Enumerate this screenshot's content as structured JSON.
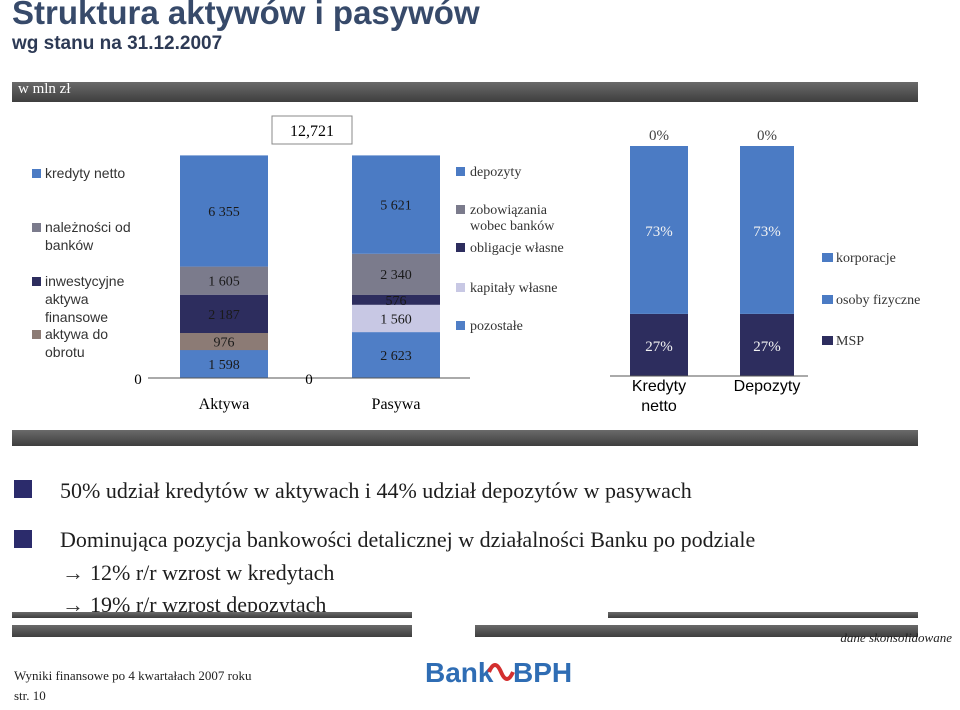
{
  "header": {
    "title": "Struktura aktywów i pasywów",
    "subtitle": "wg stanu na 31.12.2007",
    "unit": "w mln zł"
  },
  "chart_data": [
    {
      "type": "bar",
      "stacked": true,
      "categories": [
        "Aktywa",
        "Pasywa"
      ],
      "total_label": "12,721",
      "axis_zero_labels": [
        "0",
        "0"
      ],
      "series": [
        {
          "name": "kredyty netto",
          "chart": "assets",
          "values": [
            6355,
            null
          ]
        },
        {
          "name": "należności od banków",
          "chart": "assets",
          "values": [
            1605,
            null
          ]
        },
        {
          "name": "inwestycyjne aktywa finansowe",
          "chart": "assets",
          "values": [
            2187,
            null
          ]
        },
        {
          "name": "aktywa do obrotu",
          "chart": "assets",
          "values": [
            976,
            null
          ]
        },
        {
          "name": "",
          "chart": "assets",
          "values": [
            1598,
            null
          ]
        },
        {
          "name": "depozyty",
          "chart": "liabilities",
          "values": [
            null,
            5621
          ]
        },
        {
          "name": "zobowiązania wobec banków",
          "chart": "liabilities",
          "values": [
            null,
            2340
          ]
        },
        {
          "name": "obligacje własne",
          "chart": "liabilities",
          "values": [
            null,
            576
          ]
        },
        {
          "name": "kapitały własne",
          "chart": "liabilities",
          "values": [
            null,
            1560
          ]
        },
        {
          "name": "pozostałe",
          "chart": "liabilities",
          "values": [
            null,
            2623
          ]
        }
      ],
      "data_labels": {
        "assets": [
          "6 355",
          "1 605",
          "2 187",
          "976",
          "1 598"
        ],
        "liabilities": [
          "5 621",
          "2 340",
          "576",
          "1 560",
          "2 623"
        ]
      },
      "colors": {
        "assets": [
          "#4b7bc4",
          "#7b7b8c",
          "#2d2d5e",
          "#8c7b75",
          "#4f7ec6"
        ],
        "liabilities": [
          "#4b7bc4",
          "#7b7b8c",
          "#2d2d5e",
          "#c8c8e4",
          "#4f7ec6"
        ]
      },
      "legend_assets": [
        "kredyty netto",
        "należności od banków",
        "inwestycyjne aktywa finansowe",
        "aktywa do obrotu"
      ],
      "legend_liabilities": [
        "depozyty",
        "zobowiązania wobec banków",
        "obligacje własne",
        "kapitały własne",
        "pozostałe"
      ]
    },
    {
      "type": "bar",
      "stacked": true,
      "percent": true,
      "categories": [
        "Kredyty netto",
        "Depozyty"
      ],
      "series": [
        {
          "name": "korporacje",
          "values": [
            0,
            0
          ],
          "labels": [
            "0%",
            "0%"
          ],
          "color": "#4b7bc4"
        },
        {
          "name": "osoby fizyczne",
          "values": [
            73,
            73
          ],
          "labels": [
            "73%",
            "73%"
          ],
          "color": "#4b7bc4"
        },
        {
          "name": "MSP",
          "values": [
            27,
            27
          ],
          "labels": [
            "27%",
            "27%"
          ],
          "color": "#2d2d5e"
        }
      ],
      "legend": [
        "korporacje",
        "osoby fizyczne",
        "MSP"
      ]
    }
  ],
  "messages": {
    "line1": "50% udział kredytów w aktywach i 44% udział depozytów w pasywach",
    "line2": "Dominująca pozycja bankowości detalicznej w działalności Banku po podziale",
    "sub1": "12% r/r wzrost w kredytach",
    "sub2": "19% r/r wzrost depozytach",
    "arrow": "→"
  },
  "footer": {
    "report": "Wyniki finansowe po 4 kwartałach 2007 roku",
    "page": "str. 10",
    "note": "dane skonsolidowane",
    "logo_left": "Bank",
    "logo_right": "BPH"
  }
}
